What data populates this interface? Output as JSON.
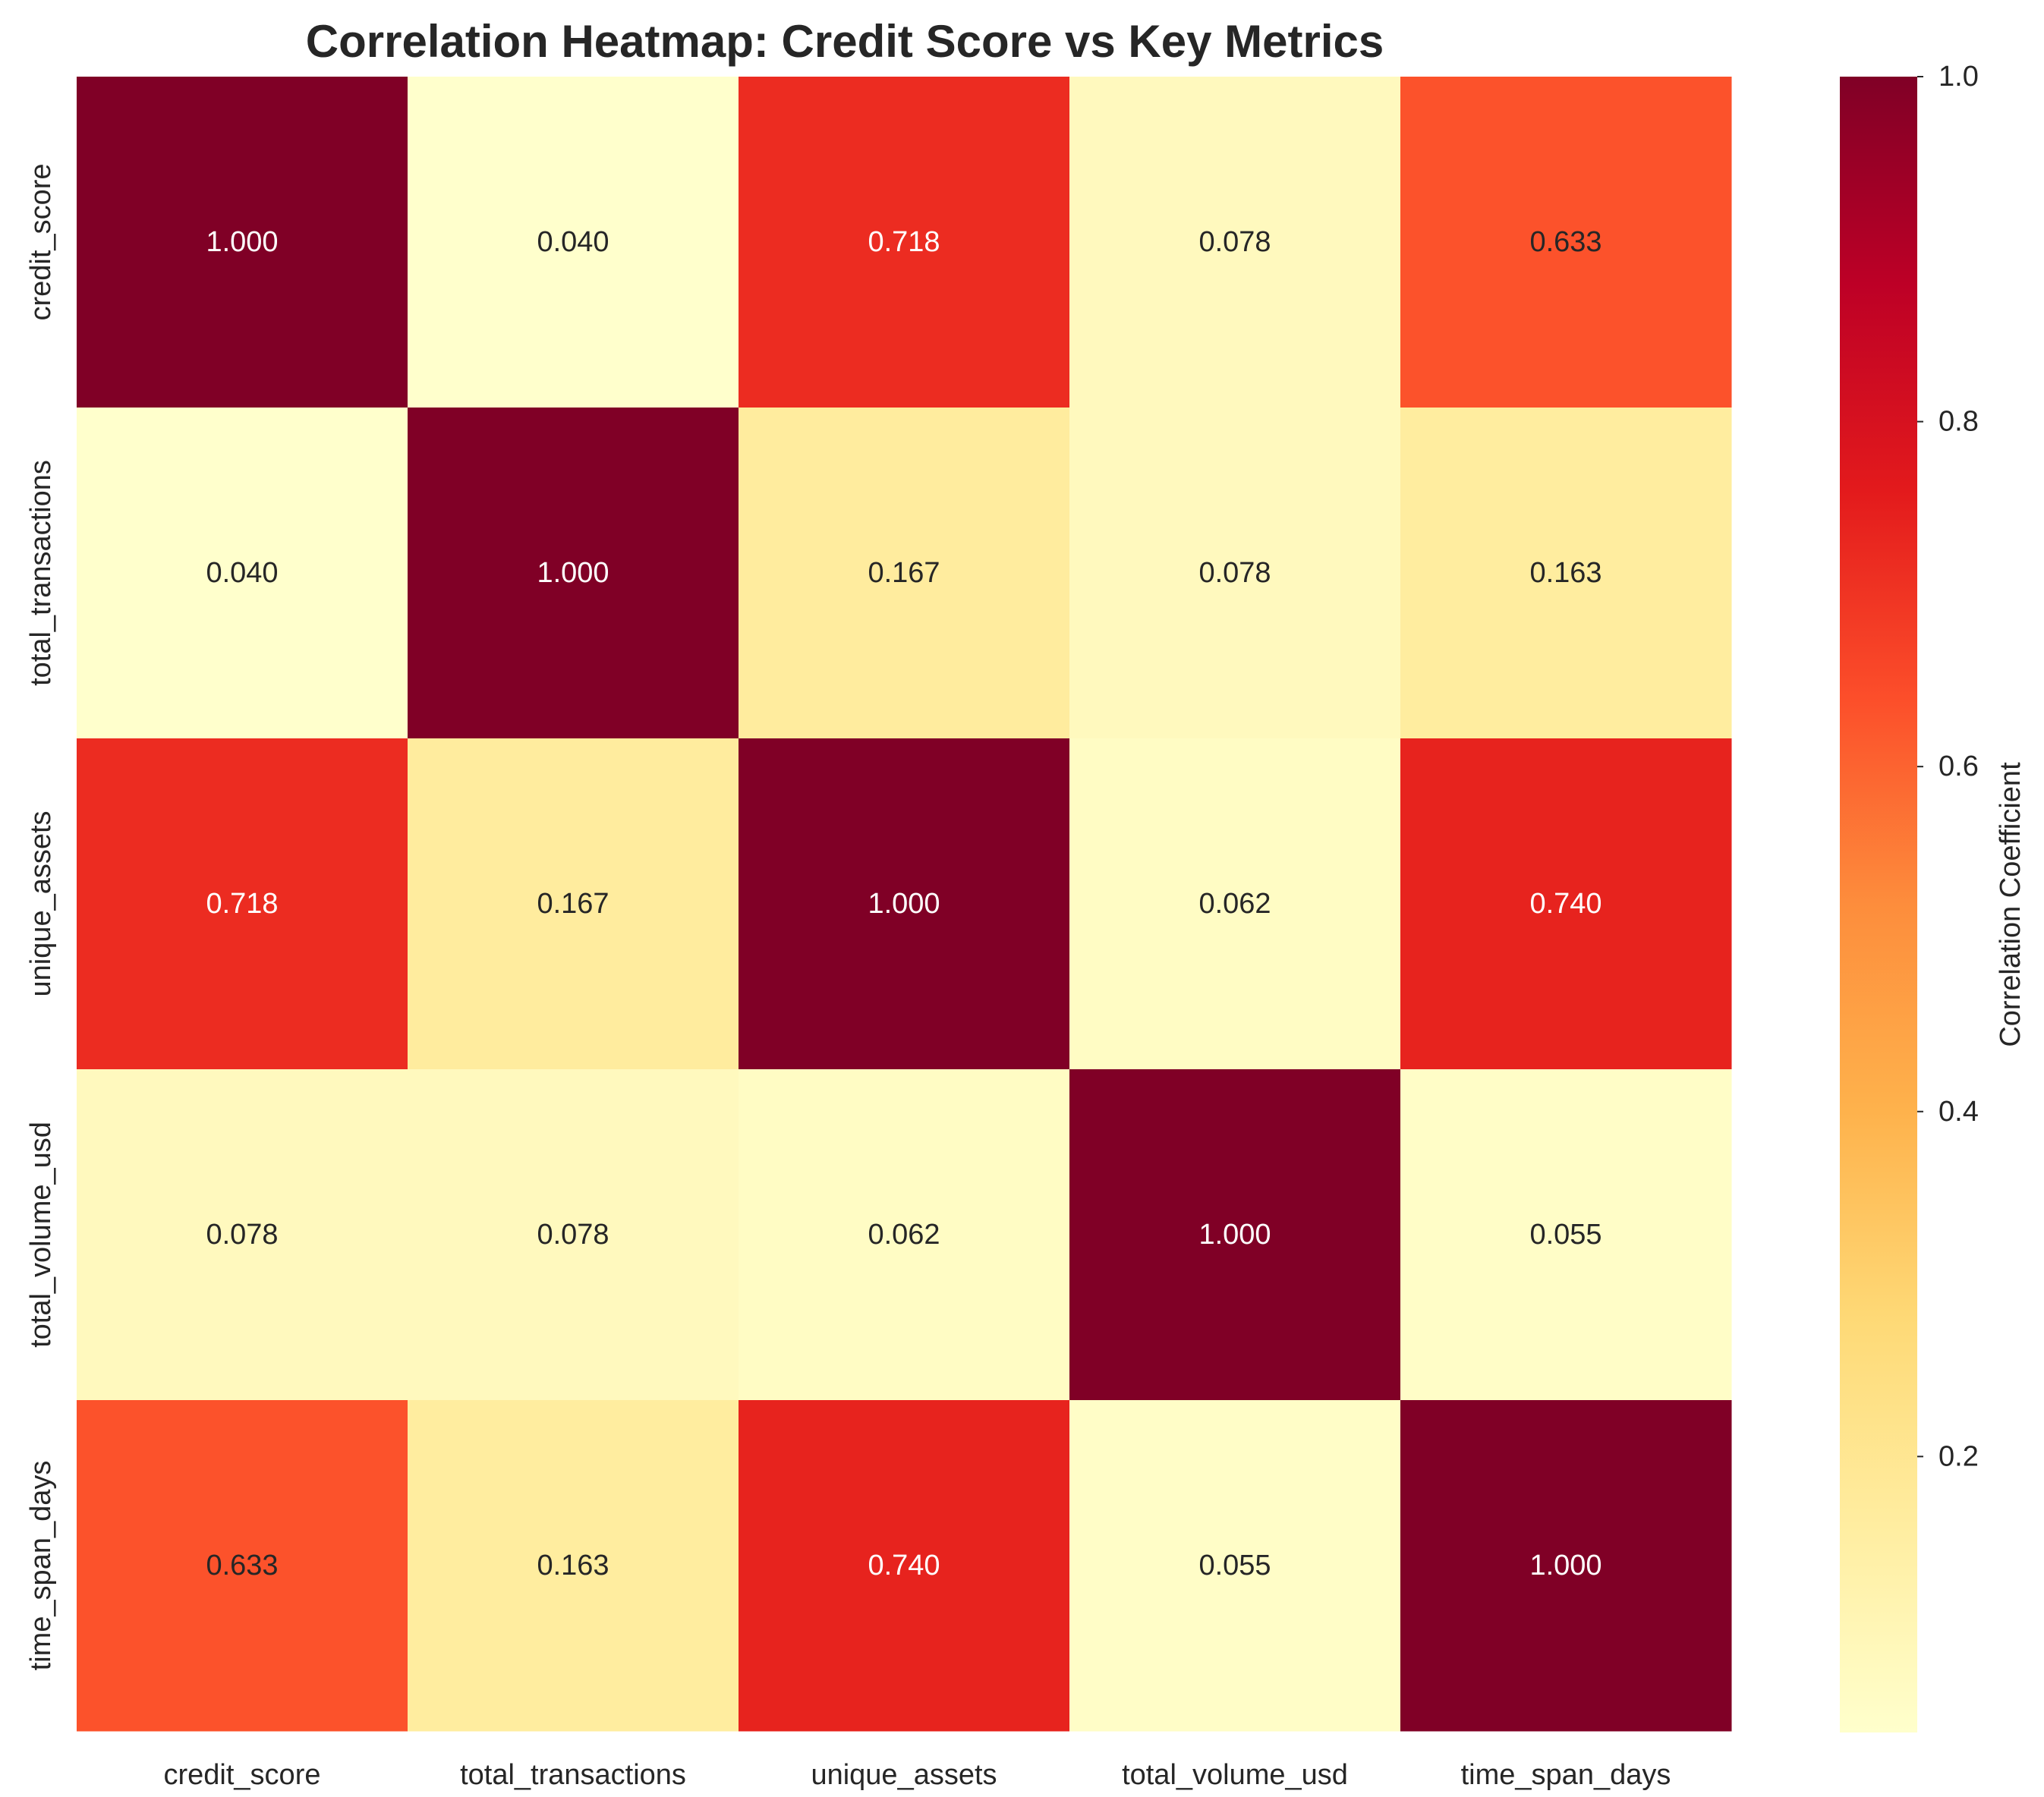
{
  "chart_data": {
    "type": "heatmap",
    "title": "Correlation Heatmap: Credit Score vs Key Metrics",
    "x_categories": [
      "credit_score",
      "total_transactions",
      "unique_assets",
      "total_volume_usd",
      "time_span_days"
    ],
    "y_categories": [
      "credit_score",
      "total_transactions",
      "unique_assets",
      "total_volume_usd",
      "time_span_days"
    ],
    "values": [
      [
        1.0,
        0.04,
        0.718,
        0.078,
        0.633
      ],
      [
        0.04,
        1.0,
        0.167,
        0.078,
        0.163
      ],
      [
        0.718,
        0.167,
        1.0,
        0.062,
        0.74
      ],
      [
        0.078,
        0.078,
        0.062,
        1.0,
        0.055
      ],
      [
        0.633,
        0.163,
        0.74,
        0.055,
        1.0
      ]
    ],
    "value_format": "0.000",
    "colormap": "YlOrRd",
    "color_range": [
      0.04,
      1.0
    ],
    "colorbar": {
      "label": "Correlation Coefficient",
      "ticks": [
        0.2,
        0.4,
        0.6,
        0.8,
        1.0
      ],
      "tick_labels": [
        "0.2",
        "0.4",
        "0.6",
        "0.8",
        "1.0"
      ]
    },
    "grid": false
  }
}
